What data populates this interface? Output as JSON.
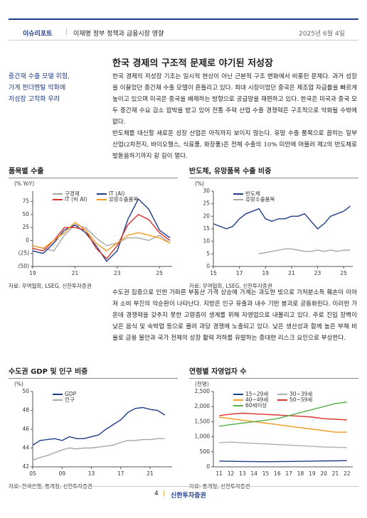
{
  "header": {
    "section": "이슈리포트",
    "report": "이재명 정부 정책과 금융시장 영향",
    "date": "2025년 6월 4일"
  },
  "title": "한국 경제의 구조적 문제로 야기된 저성장",
  "sidebar": [
    "중간재 수출 모델 위험,",
    "가계 펀더멘탈 악화에",
    "저성장 고착화 우려"
  ],
  "paragraphs": [
    "한국 경제의 저성장 기조는 일시적 현상이 아닌 근본적 구조 변화에서 비롯된 문제다. 과거 성장을 이끌었던 중간재 수출 모델이 흔들리고 있다. 최대 시장이었던 중국은 제조업 자급률을 빠르게 높이고 있으며 미국은 중국을 배제하는 방향으로 공급망을 재편하고 있다. 한국은 미국과 중국 모두 중간재 수요 감소 압박을 받고 있어 전통 주력 산업 수출 경쟁력은 구조적으로 악화될 수밖에 없다.",
    "반도체를 대신할 새로운 성장 산업은 아직까지 보이지 않는다. 유망 수출 품목으로 꼽히는 일부 산업(2차전지, 바이오헬스, 식료품, 화장품)은 전체 수출의 10% 미만에 머물러 제2의 반도체로 발돋움하기까지 갈 길이 멀다.",
    "수도권 집중으로 인한 가파른 부동산 가격 상승에 가계는 과도한 빚으로 가처분소득 훼손이 이어져 소비 부진의 악순환이 나타난다. 지방은 인구 유출과 내수 기반 붕괴로 공동화된다. 이러한 가운데 경쟁력을 갖추지 못한 고령층이 생계를 위해 자영업으로 내몰리고 있다. 주로 진입 장벽이 낮은 음식 및 숙박업 등으로 몰려 과당 경쟁에 노출되고 있다. 낮은 생산성과 함께 높은 부채 비율로 금융 불안과 국가 전체의 성장 활력 저하를 유발하는 중대한 리스크 요인으로 부상한다."
  ],
  "footer": {
    "page": "4",
    "company": "신한투자증권"
  },
  "chart_data": [
    {
      "type": "line",
      "title": "품목별 수출",
      "y_label": "(% YoY)",
      "source": "자료: 무역협회, LSEG, 신한투자증권",
      "legend": "upper left",
      "x": [
        2019,
        2019.5,
        2020,
        2020.5,
        2021,
        2021.5,
        2022,
        2022.5,
        2023,
        2023.5,
        2024,
        2024.5,
        2025,
        2025.5
      ],
      "xlim": [
        2019,
        2025.6
      ],
      "xticks": [
        {
          "value": 2019,
          "label": "19"
        },
        {
          "value": 2021,
          "label": "21"
        },
        {
          "value": 2023,
          "label": "23"
        },
        {
          "value": 2025,
          "label": "25"
        }
      ],
      "ylim": [
        -50,
        95
      ],
      "yticks": [
        {
          "value": -50,
          "label": "(50)"
        },
        {
          "value": -25,
          "label": "(25)"
        },
        0,
        25,
        50,
        75
      ],
      "series": [
        {
          "name": "구경제",
          "color": "#a6a6a6",
          "values": [
            -10,
            -15,
            -20,
            10,
            30,
            25,
            5,
            -10,
            -5,
            5,
            5,
            0,
            10,
            -5
          ]
        },
        {
          "name": "IT (AI)",
          "color": "#1f3c88",
          "values": [
            -20,
            -25,
            -5,
            20,
            30,
            15,
            -10,
            -40,
            -20,
            40,
            80,
            60,
            20,
            5
          ]
        },
        {
          "name": "IT (비 AI)",
          "color": "#d9302c",
          "values": [
            -15,
            -20,
            0,
            25,
            25,
            20,
            -15,
            -35,
            -10,
            30,
            50,
            40,
            15,
            0
          ]
        },
        {
          "name": "유망수출품목",
          "color": "#f39a1e",
          "values": [
            -10,
            -15,
            0,
            15,
            35,
            20,
            -5,
            -20,
            -5,
            10,
            15,
            10,
            5,
            -5
          ]
        }
      ]
    },
    {
      "type": "line",
      "title": "반도체, 유망품목 수출 비중",
      "y_label": "(%)",
      "source": "자료: 무역협회, LSEG, 신한투자증권",
      "legend": "upper left",
      "x": [
        2015,
        2015.5,
        2016,
        2016.5,
        2017,
        2017.5,
        2018,
        2018.5,
        2019,
        2019.5,
        2020,
        2020.5,
        2021,
        2021.5,
        2022,
        2022.5,
        2023,
        2023.5,
        2024,
        2024.5,
        2025,
        2025.5
      ],
      "xlim": [
        2015,
        2025.7
      ],
      "xticks": [
        {
          "value": 2015,
          "label": "15"
        },
        {
          "value": 2017,
          "label": "17"
        },
        {
          "value": 2019,
          "label": "19"
        },
        {
          "value": 2021,
          "label": "21"
        },
        {
          "value": 2023,
          "label": "23"
        },
        {
          "value": 2025,
          "label": "25"
        }
      ],
      "ylim": [
        0,
        30
      ],
      "yticks": [
        0,
        5,
        10,
        15,
        20,
        25,
        30
      ],
      "series": [
        {
          "name": "반도체",
          "color": "#1f3c88",
          "values": [
            17,
            16,
            15,
            16,
            19,
            21,
            22,
            23,
            19,
            18,
            19,
            19,
            20,
            20,
            21,
            18,
            15,
            17,
            20,
            21,
            22,
            24
          ]
        },
        {
          "name": "유망수출품목",
          "color": "#a6a6a6",
          "values": [
            null,
            null,
            null,
            null,
            null,
            null,
            null,
            5,
            5.5,
            6,
            6.5,
            7,
            7,
            6.5,
            6,
            6,
            6.5,
            6,
            6.5,
            6,
            6.5,
            6.5
          ]
        }
      ]
    },
    {
      "type": "line",
      "title": "수도권 GDP 및 인구 비중",
      "y_label": "(%)",
      "source": "자료: 한국은행, 통계청, 신한투자증권",
      "legend": "upper left",
      "x": [
        2005,
        2006,
        2007,
        2008,
        2009,
        2010,
        2011,
        2012,
        2013,
        2014,
        2015,
        2016,
        2017,
        2018,
        2019,
        2020,
        2021,
        2022,
        2023
      ],
      "xlim": [
        2005,
        2024
      ],
      "xticks": [
        {
          "value": 2005,
          "label": "05"
        },
        {
          "value": 2009,
          "label": "09"
        },
        {
          "value": 2013,
          "label": "13"
        },
        {
          "value": 2017,
          "label": "17"
        },
        {
          "value": 2021,
          "label": "21"
        }
      ],
      "ylim": [
        42,
        50
      ],
      "yticks": [
        42,
        44,
        46,
        48,
        50
      ],
      "series": [
        {
          "name": "GDP",
          "color": "#1f3c88",
          "values": [
            44.3,
            44.8,
            44.9,
            45.0,
            44.8,
            45.2,
            45.0,
            45.0,
            45.2,
            45.4,
            46.0,
            46.5,
            47.0,
            47.8,
            48.2,
            48.3,
            48.1,
            48.0,
            47.5
          ]
        },
        {
          "name": "인구",
          "color": "#a6a6a6",
          "values": [
            42.7,
            43.0,
            43.2,
            43.5,
            43.8,
            44.0,
            43.9,
            44.0,
            44.0,
            44.1,
            44.2,
            44.3,
            44.6,
            44.8,
            44.8,
            44.9,
            44.9,
            45.0,
            45.0
          ]
        }
      ]
    },
    {
      "type": "line",
      "title": "연령별 자영업자 수",
      "y_label": "(천명)",
      "source": "자료: 통계청, 신한투자증권",
      "legend": "upper left",
      "categories": [
        "11",
        "12",
        "13",
        "14",
        "15",
        "16",
        "17",
        "18",
        "19",
        "20",
        "21",
        "22"
      ],
      "ylim": [
        0,
        2500
      ],
      "yticks": [
        0,
        500,
        {
          "value": 1000,
          "label": "1,000"
        },
        {
          "value": 1500,
          "label": "1,500"
        },
        {
          "value": 2000,
          "label": "2,000"
        },
        {
          "value": 2500,
          "label": "2,500"
        }
      ],
      "series": [
        {
          "name": "15~29세",
          "color": "#1f3c88",
          "values": [
            190,
            185,
            180,
            175,
            170,
            175,
            180,
            185,
            190,
            195,
            200,
            205
          ]
        },
        {
          "name": "30~39세",
          "color": "#b0b0b0",
          "values": [
            800,
            820,
            800,
            780,
            760,
            740,
            720,
            700,
            680,
            660,
            650,
            640
          ]
        },
        {
          "name": "40~49세",
          "color": "#f39a1e",
          "values": [
            1650,
            1600,
            1550,
            1500,
            1450,
            1400,
            1350,
            1300,
            1250,
            1200,
            1150,
            1150
          ]
        },
        {
          "name": "50~59세",
          "color": "#d9302c",
          "values": [
            1700,
            1750,
            1780,
            1760,
            1740,
            1720,
            1700,
            1680,
            1650,
            1600,
            1580,
            1560
          ]
        },
        {
          "name": "60세이상",
          "color": "#55b04a",
          "values": [
            1350,
            1400,
            1450,
            1500,
            1550,
            1600,
            1700,
            1800,
            1900,
            2000,
            2100,
            2150
          ]
        }
      ]
    }
  ]
}
